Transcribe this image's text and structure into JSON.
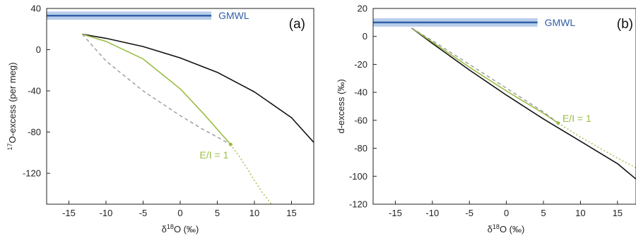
{
  "chart_data": [
    {
      "type": "line",
      "panel_label": "(a)",
      "xlabel_parts": [
        "δ",
        "18",
        "O (‰)"
      ],
      "ylabel_parts": [
        "17",
        "O-excess (per meg)"
      ],
      "xlim": [
        -18,
        18
      ],
      "ylim": [
        -150,
        40
      ],
      "xticks": [
        -15,
        -10,
        -5,
        0,
        5,
        10,
        15
      ],
      "yticks": [
        -120,
        -80,
        -40,
        0,
        40
      ],
      "gmwl": {
        "label": "GMWL",
        "y": 33,
        "x_start": -18,
        "x_end": 4.2,
        "band_halfwidth": 4
      },
      "annotation": {
        "text": "E/I = 1",
        "x": 6.8,
        "y": -92
      },
      "series": [
        {
          "role": "black-solid",
          "style": "solid",
          "color": "#111111",
          "x": [
            -13.2,
            -10,
            -5,
            0,
            5,
            10,
            15,
            18
          ],
          "y": [
            15,
            11,
            3,
            -8,
            -22,
            -41,
            -66,
            -90
          ]
        },
        {
          "role": "green-solid",
          "style": "solid",
          "color": "#9bbd45",
          "x": [
            -13.2,
            -10,
            -5,
            0,
            3,
            6.8
          ],
          "y": [
            15,
            8,
            -9,
            -38,
            -61,
            -92
          ]
        },
        {
          "role": "green-dotted",
          "style": "dotted",
          "color": "#9bbd45",
          "x": [
            6.8,
            8,
            9,
            10,
            11,
            12.3
          ],
          "y": [
            -92,
            -104,
            -115,
            -127,
            -138,
            -150
          ]
        },
        {
          "role": "grey-dashed",
          "style": "dashed",
          "color": "#999999",
          "x": [
            -13.2,
            -10,
            -5,
            0,
            3,
            6.8
          ],
          "y": [
            15,
            -11,
            -40,
            -64,
            -77,
            -92
          ]
        }
      ]
    },
    {
      "type": "line",
      "panel_label": "(b)",
      "xlabel_parts": [
        "δ",
        "18",
        "O (‰)"
      ],
      "ylabel": "d-excess (‰)",
      "xlim": [
        -18,
        17.5
      ],
      "ylim": [
        -120,
        20
      ],
      "xticks": [
        -15,
        -10,
        -5,
        0,
        5,
        10,
        15
      ],
      "yticks": [
        -120,
        -100,
        -80,
        -60,
        -40,
        -20,
        0,
        20
      ],
      "gmwl": {
        "label": "GMWL",
        "y": 10,
        "x_start": -18,
        "x_end": 4.2,
        "band_halfwidth": 3
      },
      "annotation": {
        "text": "E/I = 1",
        "x": 7,
        "y": -62
      },
      "series": [
        {
          "role": "black-solid",
          "style": "solid",
          "color": "#111111",
          "x": [
            -12.8,
            -10,
            -5,
            0,
            5,
            10,
            15,
            17.5
          ],
          "y": [
            6,
            -5,
            -24,
            -42,
            -59,
            -75,
            -91,
            -102
          ]
        },
        {
          "role": "green-solid",
          "style": "solid",
          "color": "#9bbd45",
          "x": [
            -12.8,
            -10,
            -5,
            0,
            5,
            7
          ],
          "y": [
            6,
            -4,
            -22,
            -39,
            -55,
            -62
          ]
        },
        {
          "role": "green-dotted",
          "style": "dotted",
          "color": "#9bbd45",
          "x": [
            7,
            10,
            13,
            15,
            17.5
          ],
          "y": [
            -62,
            -72,
            -81,
            -87,
            -94
          ]
        },
        {
          "role": "grey-dashed",
          "style": "dashed",
          "color": "#999999",
          "x": [
            -12.8,
            -10,
            -5,
            0,
            5,
            7
          ],
          "y": [
            6,
            -3,
            -20,
            -37,
            -54,
            -62
          ]
        }
      ]
    }
  ]
}
